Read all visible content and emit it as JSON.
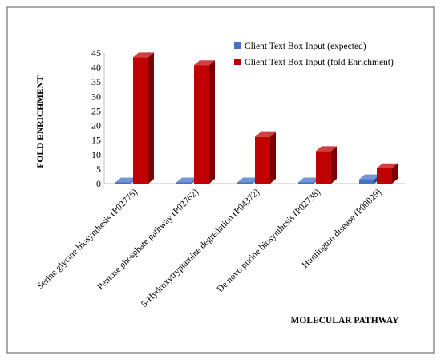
{
  "chart_data": {
    "type": "bar",
    "categories": [
      "Serine glycine biosynthesis (P02776)",
      "Pentose phosphate pathway (P02762)",
      "5-Hydroxytryptamine degredation (P04372)",
      "De novo purine biosynthesis (P02738)",
      "Huntington disease (P00029)"
    ],
    "series": [
      {
        "name": "Client Text Box Input (expected)",
        "values": [
          0.05,
          0.05,
          0.1,
          0.2,
          1.5
        ],
        "color": "#4472c4"
      },
      {
        "name": "Client Text Box Input (fold Enrichment)",
        "values": [
          43.5,
          40.8,
          16.1,
          11.2,
          5.3
        ],
        "color": "#c00000"
      }
    ],
    "title": "",
    "xlabel": "MOLECULAR PATHWAY",
    "ylabel": "FOLD ENRICHMENT",
    "ylim": [
      0,
      45
    ],
    "yticks": [
      "0",
      "5",
      "10",
      "15",
      "20",
      "25",
      "30",
      "35",
      "40",
      "45"
    ],
    "grid": false,
    "legend": "top-right",
    "style": "3d-column"
  }
}
